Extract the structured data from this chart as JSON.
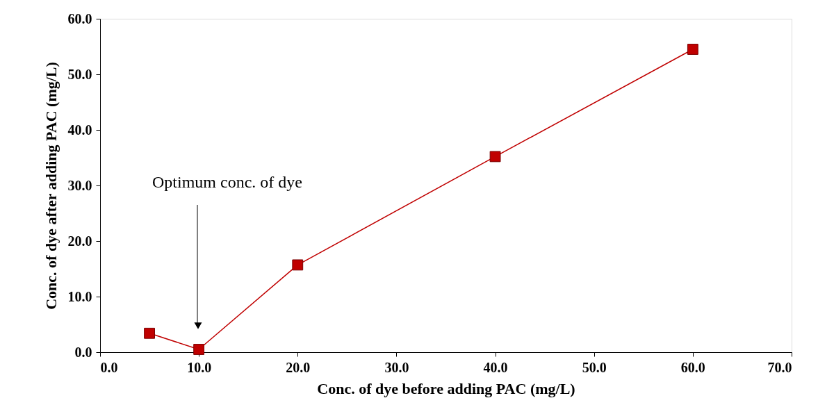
{
  "chart_data": {
    "type": "line",
    "xlabel": "Conc. of dye before adding PAC (mg/L)",
    "ylabel": "Conc. of dye after adding PAC (mg/L)",
    "x": [
      5,
      10,
      20,
      40,
      60
    ],
    "series": [
      {
        "color": "#c00000",
        "values": [
          3.4,
          0.5,
          15.7,
          35.2,
          54.5
        ]
      }
    ],
    "xlim": [
      0,
      70
    ],
    "ylim": [
      0,
      60
    ],
    "xticks": [
      {
        "value": 0,
        "label": "0.0"
      },
      {
        "value": 10,
        "label": "10.0"
      },
      {
        "value": 20,
        "label": "20.0"
      },
      {
        "value": 30,
        "label": "30.0"
      },
      {
        "value": 40,
        "label": "40.0"
      },
      {
        "value": 50,
        "label": "50.0"
      },
      {
        "value": 60,
        "label": "60.0"
      },
      {
        "value": 70,
        "label": "70.0"
      }
    ],
    "yticks": [
      {
        "value": 0,
        "label": "0.0"
      },
      {
        "value": 10,
        "label": "10.0"
      },
      {
        "value": 20,
        "label": "20.0"
      },
      {
        "value": 30,
        "label": "30.0"
      },
      {
        "value": 40,
        "label": "40.0"
      },
      {
        "value": 50,
        "label": "50.0"
      },
      {
        "value": 60,
        "label": "60.0"
      }
    ],
    "annotations": [
      "Optimum conc. of dye"
    ],
    "marker": "square",
    "line_style": "solid",
    "grid": false,
    "legend": false
  }
}
